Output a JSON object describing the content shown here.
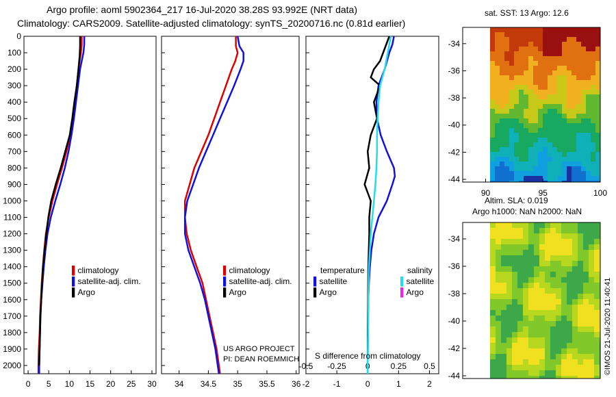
{
  "header": {
    "line1": "Argo profile: aoml 5902364_217 16-Jul-2020 38.28S 93.992E (NRT data)",
    "line2": "Climatology: CARS2009. Satellite-adjusted climatology: synTS_20200716.nc (0.81d earlier)"
  },
  "colors": {
    "clim": "#dd0000",
    "sat": "#1111dd",
    "argo": "#000000",
    "sal_sat": "#22ddee",
    "sal_argo": "#ee22ee"
  },
  "legend_temp": {
    "clim": "climatology",
    "sat": "satellite-adj. clim.",
    "argo": "Argo"
  },
  "legend_sal": {
    "clim": "climatology",
    "sat": "satellite-adj. clim.",
    "argo": "Argo"
  },
  "legend_diff": {
    "temp_head": "temperature",
    "temp_sat": "satellite",
    "temp_argo": "Argo",
    "sal_head": "salinity",
    "sal_sat": "satellite",
    "sal_argo": "Argo"
  },
  "diff_title": "S difference from climatology",
  "credits": {
    "project": "US ARGO PROJECT",
    "pi": "PI: DEAN ROEMMICH",
    "imos": "©IMOS 21-Jul-2020 11:40:41"
  },
  "map_top": {
    "title": "sat. SST: 13 Argo: 12.6"
  },
  "map_bottom": {
    "title1": "Altim. SLA: 0.019",
    "title2": "Argo h1000: NaN h2000: NaN"
  },
  "chart_data": [
    {
      "type": "line",
      "name": "temperature",
      "ylim": [
        0,
        2050
      ],
      "yticks": [
        0,
        100,
        200,
        300,
        400,
        500,
        600,
        700,
        800,
        900,
        1000,
        1100,
        1200,
        1300,
        1400,
        1500,
        1600,
        1700,
        1800,
        1900,
        2000
      ],
      "xlim": [
        -1,
        31
      ],
      "xticks": [
        0,
        5,
        10,
        15,
        20,
        25,
        30
      ],
      "series": [
        {
          "name": "climatology",
          "color": "clim",
          "points": [
            [
              13.0,
              0
            ],
            [
              13.0,
              50
            ],
            [
              12.8,
              100
            ],
            [
              12.5,
              150
            ],
            [
              12.2,
              200
            ],
            [
              11.8,
              300
            ],
            [
              11.3,
              400
            ],
            [
              10.8,
              500
            ],
            [
              10.2,
              600
            ],
            [
              9.3,
              700
            ],
            [
              8.2,
              800
            ],
            [
              7.0,
              900
            ],
            [
              5.9,
              1000
            ],
            [
              5.0,
              1100
            ],
            [
              4.3,
              1200
            ],
            [
              3.9,
              1300
            ],
            [
              3.6,
              1400
            ],
            [
              3.3,
              1500
            ],
            [
              3.1,
              1600
            ],
            [
              2.9,
              1700
            ],
            [
              2.8,
              1800
            ],
            [
              2.6,
              1900
            ],
            [
              2.5,
              2000
            ],
            [
              2.5,
              2050
            ]
          ]
        },
        {
          "name": "satellite-adj. clim.",
          "color": "sat",
          "points": [
            [
              13.6,
              0
            ],
            [
              13.6,
              50
            ],
            [
              13.4,
              100
            ],
            [
              13.0,
              150
            ],
            [
              12.6,
              200
            ],
            [
              12.1,
              300
            ],
            [
              11.6,
              400
            ],
            [
              11.1,
              500
            ],
            [
              10.5,
              600
            ],
            [
              9.8,
              700
            ],
            [
              8.9,
              800
            ],
            [
              7.8,
              900
            ],
            [
              6.6,
              1000
            ],
            [
              5.5,
              1100
            ],
            [
              4.7,
              1200
            ],
            [
              4.2,
              1300
            ],
            [
              3.8,
              1400
            ],
            [
              3.5,
              1500
            ],
            [
              3.2,
              1600
            ],
            [
              3.0,
              1700
            ],
            [
              2.9,
              1800
            ],
            [
              2.8,
              1900
            ],
            [
              2.7,
              2000
            ],
            [
              2.7,
              2050
            ]
          ]
        },
        {
          "name": "Argo",
          "color": "argo",
          "points": [
            [
              12.6,
              0
            ],
            [
              12.6,
              60
            ],
            [
              12.5,
              120
            ],
            [
              12.2,
              200
            ],
            [
              11.8,
              300
            ],
            [
              11.2,
              400
            ],
            [
              10.7,
              500
            ],
            [
              10.1,
              600
            ],
            [
              9.0,
              700
            ],
            [
              7.9,
              800
            ],
            [
              6.7,
              900
            ],
            [
              5.6,
              1000
            ],
            [
              4.9,
              1100
            ],
            [
              4.4,
              1200
            ],
            [
              4.0,
              1300
            ],
            [
              3.6,
              1400
            ],
            [
              3.4,
              1500
            ],
            [
              3.2,
              1600
            ],
            [
              3.0,
              1700
            ],
            [
              2.9,
              1800
            ],
            [
              2.8,
              1900
            ],
            [
              2.7,
              2000
            ]
          ]
        }
      ]
    },
    {
      "type": "line",
      "name": "salinity",
      "ylim": [
        0,
        2050
      ],
      "xlim": [
        33.7,
        36.05
      ],
      "xticks": [
        34,
        34.5,
        35,
        35.5,
        36
      ],
      "series": [
        {
          "name": "climatology",
          "color": "clim",
          "points": [
            [
              34.97,
              0
            ],
            [
              34.97,
              60
            ],
            [
              35.0,
              100
            ],
            [
              34.96,
              150
            ],
            [
              34.9,
              200
            ],
            [
              34.8,
              300
            ],
            [
              34.7,
              400
            ],
            [
              34.6,
              500
            ],
            [
              34.5,
              600
            ],
            [
              34.38,
              700
            ],
            [
              34.26,
              800
            ],
            [
              34.18,
              900
            ],
            [
              34.1,
              1000
            ],
            [
              34.1,
              1100
            ],
            [
              34.13,
              1200
            ],
            [
              34.2,
              1300
            ],
            [
              34.3,
              1400
            ],
            [
              34.4,
              1500
            ],
            [
              34.46,
              1600
            ],
            [
              34.52,
              1700
            ],
            [
              34.58,
              1800
            ],
            [
              34.64,
              1900
            ],
            [
              34.68,
              2000
            ],
            [
              34.7,
              2050
            ]
          ]
        },
        {
          "name": "satellite-adj. clim.",
          "color": "sat",
          "points": [
            [
              35.0,
              0
            ],
            [
              35.03,
              60
            ],
            [
              35.1,
              100
            ],
            [
              35.1,
              150
            ],
            [
              35.05,
              200
            ],
            [
              34.94,
              300
            ],
            [
              34.82,
              400
            ],
            [
              34.7,
              500
            ],
            [
              34.58,
              600
            ],
            [
              34.46,
              700
            ],
            [
              34.34,
              800
            ],
            [
              34.24,
              900
            ],
            [
              34.14,
              1000
            ],
            [
              34.1,
              1100
            ],
            [
              34.1,
              1200
            ],
            [
              34.16,
              1300
            ],
            [
              34.26,
              1400
            ],
            [
              34.36,
              1500
            ],
            [
              34.44,
              1600
            ],
            [
              34.5,
              1700
            ],
            [
              34.56,
              1800
            ],
            [
              34.62,
              1900
            ],
            [
              34.66,
              2000
            ],
            [
              34.68,
              2050
            ]
          ]
        }
      ]
    },
    {
      "type": "line",
      "name": "difference",
      "ylim": [
        0,
        2050
      ],
      "xlim": [
        -2.0,
        2.3
      ],
      "xticks": [
        -2,
        -1,
        0,
        1,
        2
      ],
      "xticks2": [
        "-0.5",
        "-0.25",
        "0",
        "0.25",
        "0.5"
      ],
      "series": [
        {
          "name": "temperature satellite",
          "color": "sat",
          "points": [
            [
              0.85,
              0
            ],
            [
              0.8,
              50
            ],
            [
              0.7,
              100
            ],
            [
              0.55,
              200
            ],
            [
              0.35,
              300
            ],
            [
              0.28,
              400
            ],
            [
              0.3,
              500
            ],
            [
              0.42,
              600
            ],
            [
              0.62,
              700
            ],
            [
              0.85,
              800
            ],
            [
              0.88,
              850
            ],
            [
              0.8,
              900
            ],
            [
              0.62,
              1000
            ],
            [
              0.35,
              1100
            ],
            [
              0.2,
              1200
            ],
            [
              0.12,
              1300
            ],
            [
              0.07,
              1400
            ],
            [
              0.04,
              1500
            ],
            [
              0.02,
              1600
            ],
            [
              0.01,
              1800
            ],
            [
              0.0,
              2000
            ],
            [
              0.0,
              2050
            ]
          ]
        },
        {
          "name": "temperature Argo",
          "color": "argo",
          "points": [
            [
              0.7,
              0
            ],
            [
              0.6,
              50
            ],
            [
              0.5,
              100
            ],
            [
              0.4,
              150
            ],
            [
              0.2,
              200
            ],
            [
              0.1,
              250
            ],
            [
              0.4,
              300
            ],
            [
              0.2,
              400
            ],
            [
              0.3,
              500
            ],
            [
              0.1,
              600
            ],
            [
              0.0,
              700
            ],
            [
              0.05,
              800
            ],
            [
              -0.1,
              900
            ],
            [
              0.1,
              1000
            ],
            [
              0.05,
              1100
            ],
            [
              0.05,
              1200
            ],
            [
              0.02,
              1400
            ],
            [
              0.01,
              1600
            ],
            [
              0.0,
              1800
            ],
            [
              0.0,
              2000
            ]
          ]
        },
        {
          "name": "salinity satellite",
          "color": "sal_sat",
          "points": [
            [
              0.75,
              0
            ],
            [
              0.7,
              50
            ],
            [
              0.65,
              100
            ],
            [
              0.55,
              200
            ],
            [
              0.4,
              300
            ],
            [
              0.35,
              400
            ],
            [
              0.32,
              500
            ],
            [
              0.3,
              600
            ],
            [
              0.3,
              700
            ],
            [
              0.28,
              800
            ],
            [
              0.25,
              900
            ],
            [
              0.2,
              1000
            ],
            [
              0.15,
              1100
            ],
            [
              0.1,
              1200
            ],
            [
              0.07,
              1300
            ],
            [
              0.04,
              1400
            ],
            [
              0.02,
              1600
            ],
            [
              0.01,
              1800
            ],
            [
              0.0,
              2000
            ],
            [
              0.0,
              2050
            ]
          ]
        }
      ]
    },
    {
      "type": "heatmap",
      "name": "sat_sst_map",
      "xlim": [
        88,
        100
      ],
      "xticks": [
        90,
        95,
        100
      ],
      "ylim": [
        -44.2,
        -32.8
      ],
      "yticks": [
        -34,
        -36,
        -38,
        -40,
        -42,
        -44
      ]
    },
    {
      "type": "heatmap",
      "name": "altimetry_sla_map",
      "ylim": [
        -44.2,
        -32.8
      ],
      "yticks": [
        -34,
        -36,
        -38,
        -40,
        -42,
        -44
      ]
    }
  ]
}
